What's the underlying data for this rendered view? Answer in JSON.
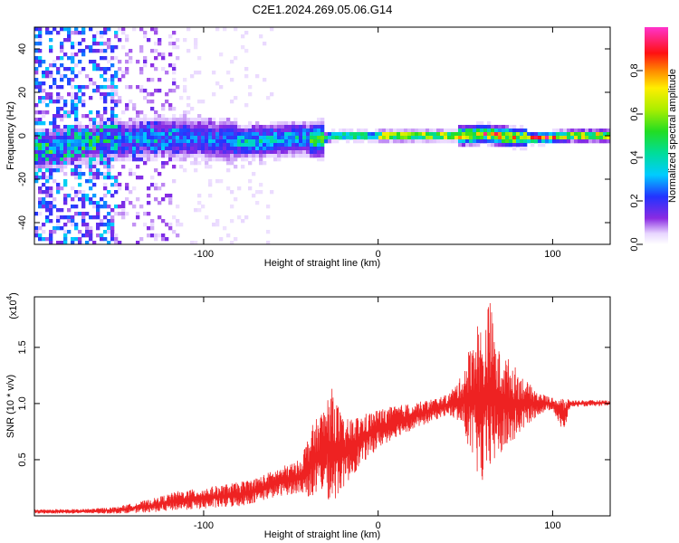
{
  "title": "C2E1.2024.269.05.06.G14",
  "colors": {
    "snr_line": "#ee2222",
    "axis": "#000000"
  },
  "chart_data": [
    {
      "type": "heatmap",
      "xlabel": "Height of straight line (km)",
      "ylabel": "Frequency (Hz)",
      "xlim": [
        -197,
        133
      ],
      "ylim": [
        -50,
        50
      ],
      "xticks": [
        -100,
        0,
        100
      ],
      "yticks": [
        -40,
        -20,
        0,
        20,
        40
      ],
      "grid": false,
      "signal_band_center_hz": [
        [
          -170,
          -4
        ],
        [
          -150,
          -2
        ],
        [
          -130,
          -1
        ],
        [
          -110,
          -1
        ],
        [
          -90,
          -2
        ],
        [
          -75,
          -3
        ],
        [
          -60,
          -2
        ],
        [
          -45,
          -1
        ],
        [
          -35,
          -2
        ],
        [
          -25,
          0
        ],
        [
          -10,
          0
        ],
        [
          10,
          0
        ],
        [
          30,
          0
        ],
        [
          50,
          0
        ],
        [
          60,
          1
        ],
        [
          80,
          -1
        ],
        [
          95,
          -1
        ],
        [
          110,
          0
        ],
        [
          133,
          0
        ]
      ],
      "colorbar": {
        "label": "Normalized spectral amplitude",
        "range": [
          0,
          1
        ],
        "ticks": [
          0.0,
          0.2,
          0.4,
          0.6,
          0.8
        ]
      }
    },
    {
      "type": "line",
      "xlabel": "Height of straight line (km)",
      "ylabel": "SNR (10 * v/v)",
      "y_multiplier": "(x10",
      "y_multiplier_exp": "4",
      "multiplier_close": ")",
      "xlim": [
        -197,
        133
      ],
      "ylim": [
        0,
        1.95
      ],
      "xticks": [
        -100,
        0,
        100
      ],
      "yticks": [
        0.5,
        1.0,
        1.5
      ],
      "grid": false,
      "envelope": [
        [
          -197,
          0.02,
          0.06
        ],
        [
          -170,
          0.02,
          0.06
        ],
        [
          -150,
          0.02,
          0.08
        ],
        [
          -130,
          0.03,
          0.15
        ],
        [
          -115,
          0.05,
          0.22
        ],
        [
          -100,
          0.06,
          0.25
        ],
        [
          -80,
          0.08,
          0.3
        ],
        [
          -70,
          0.12,
          0.34
        ],
        [
          -55,
          0.18,
          0.44
        ],
        [
          -45,
          0.2,
          0.5
        ],
        [
          -38,
          0.15,
          0.8
        ],
        [
          -32,
          0.2,
          0.95
        ],
        [
          -26,
          0.1,
          1.15
        ],
        [
          -20,
          0.25,
          0.85
        ],
        [
          -10,
          0.45,
          0.9
        ],
        [
          0,
          0.6,
          0.95
        ],
        [
          10,
          0.7,
          0.98
        ],
        [
          25,
          0.8,
          1.02
        ],
        [
          40,
          0.9,
          1.08
        ],
        [
          48,
          0.8,
          1.25
        ],
        [
          53,
          0.55,
          1.55
        ],
        [
          57,
          0.35,
          1.75
        ],
        [
          60,
          0.25,
          1.65
        ],
        [
          64,
          0.4,
          1.95
        ],
        [
          68,
          0.5,
          1.5
        ],
        [
          75,
          0.6,
          1.4
        ],
        [
          85,
          0.8,
          1.2
        ],
        [
          92,
          0.9,
          1.1
        ],
        [
          100,
          0.95,
          1.05
        ],
        [
          106,
          0.72,
          1.06
        ],
        [
          110,
          0.97,
          1.03
        ],
        [
          133,
          0.98,
          1.03
        ]
      ]
    }
  ]
}
